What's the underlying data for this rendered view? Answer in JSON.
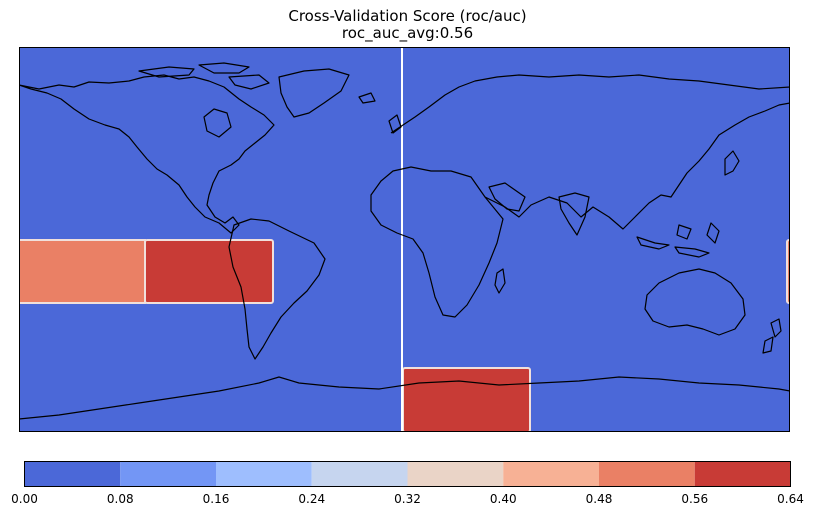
{
  "title": {
    "line1": "Cross-Validation Score (roc/auc)",
    "line2": "roc_auc_avg:0.56"
  },
  "colorbar": {
    "ticks": [
      "0.00",
      "0.08",
      "0.16",
      "0.24",
      "0.32",
      "0.40",
      "0.48",
      "0.56",
      "0.64"
    ],
    "levels": [
      0.0,
      0.08,
      0.16,
      0.24,
      0.32,
      0.4,
      0.48,
      0.56,
      0.64
    ],
    "colors": [
      "#4b68d8",
      "#7396f5",
      "#9ebefe",
      "#c6d5ef",
      "#ead4c7",
      "#f7b195",
      "#ea8065",
      "#c83b36"
    ]
  },
  "map": {
    "background_value_color": "#4b68d8",
    "region_borders": "#ffffff",
    "coastline_color": "#000000"
  }
}
